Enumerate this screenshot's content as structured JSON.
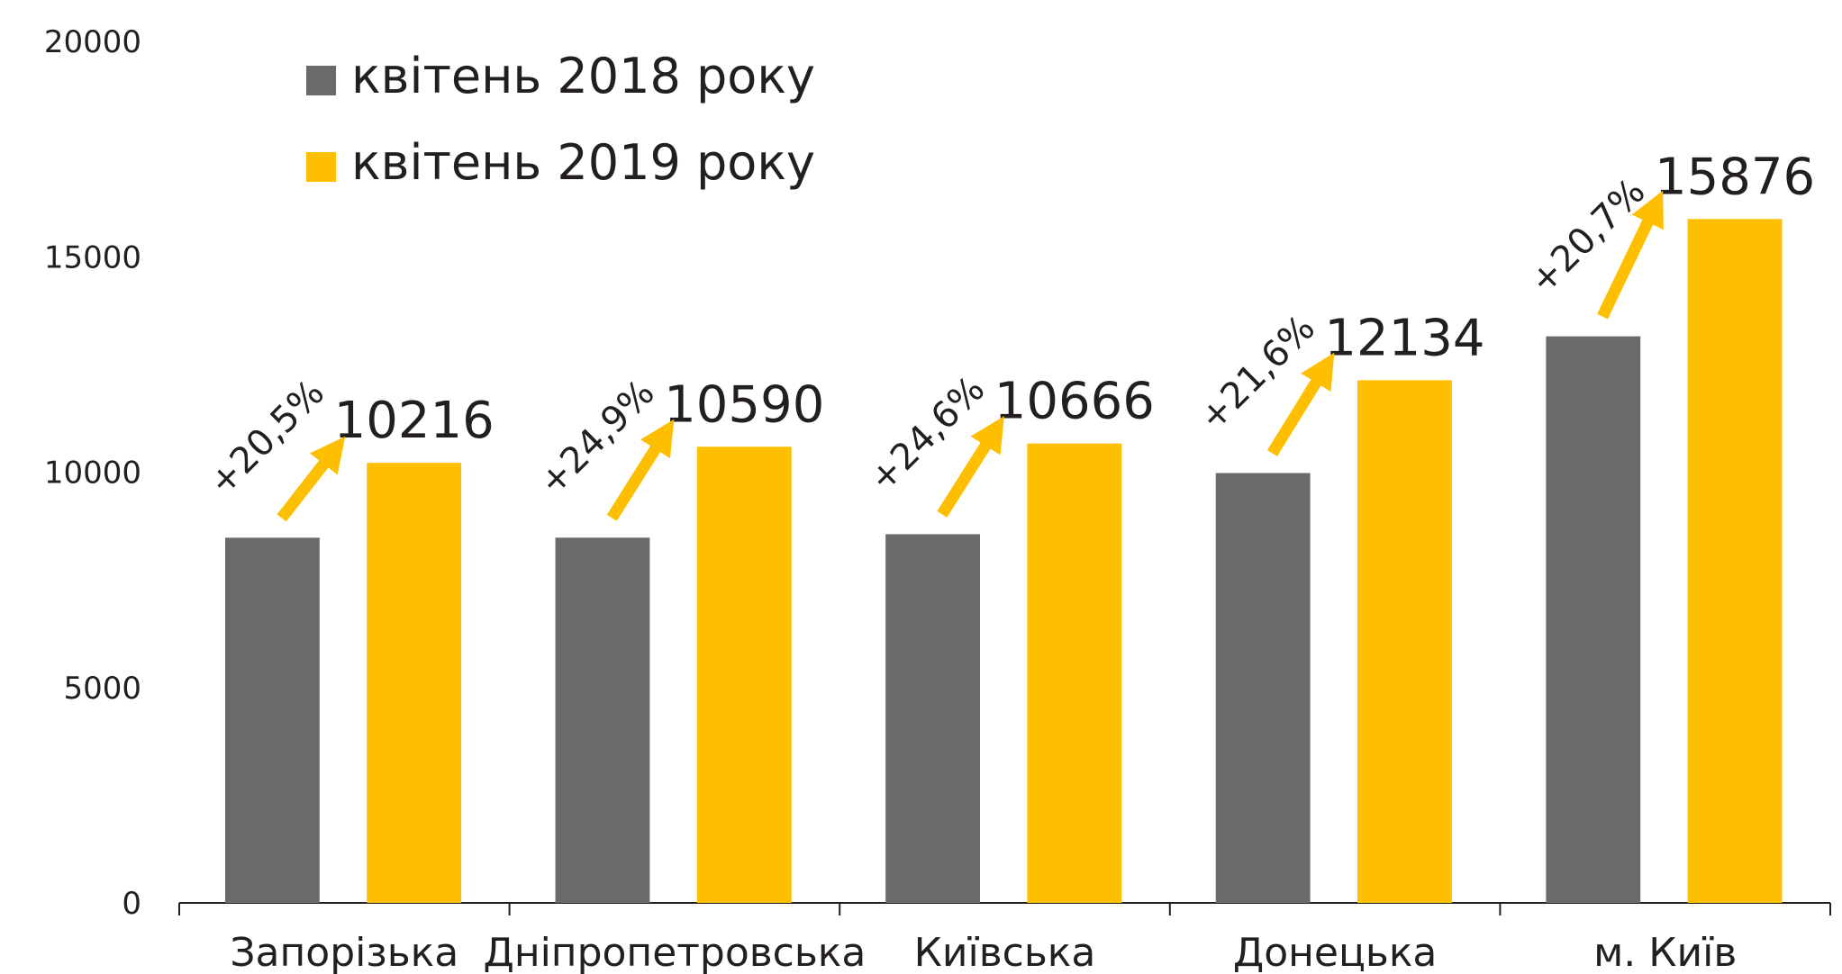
{
  "chart_data": {
    "type": "bar",
    "categories": [
      "Запорізька",
      "Дніпропетровська",
      "Київська",
      "Донецька",
      "м. Київ"
    ],
    "series": [
      {
        "name": "квітень 2018 року",
        "color": "#6b6a68",
        "values": [
          8478,
          8479,
          8560,
          9979,
          13153
        ]
      },
      {
        "name": "квітень 2019 року",
        "color": "#fdbf00",
        "values": [
          10216,
          10590,
          10666,
          12134,
          15876
        ]
      }
    ],
    "annotations": [
      "+20,5%",
      "+24,9%",
      "+24,6%",
      "+21,6%",
      "+20,7%"
    ],
    "ylim": [
      0,
      20000
    ],
    "yticks": [
      0,
      5000,
      10000,
      15000,
      20000
    ],
    "legend": "top-left"
  }
}
